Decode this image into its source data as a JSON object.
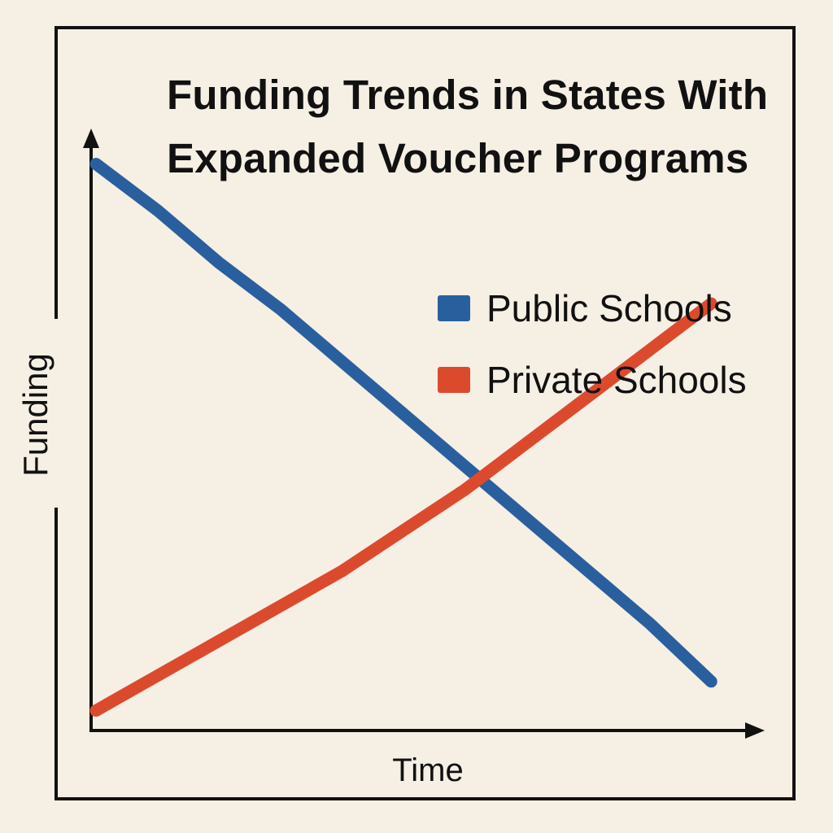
{
  "chart_data": {
    "type": "line",
    "title": "Funding Trends in States With Expanded Voucher Programs",
    "xlabel": "Time",
    "ylabel": "Funding",
    "x": [
      0,
      1,
      2,
      3,
      4,
      5,
      6,
      7,
      8,
      9,
      10
    ],
    "xlim": [
      0,
      10.5
    ],
    "ylim": [
      0,
      100
    ],
    "grid": false,
    "legend_position": "right",
    "series": [
      {
        "name": "Public Schools",
        "color": "#2a5f9e",
        "values": [
          97,
          89,
          80,
          72,
          63,
          54,
          45,
          36,
          27,
          18,
          8
        ]
      },
      {
        "name": "Private Schools",
        "color": "#dc4a2e",
        "values": [
          3,
          9,
          15,
          21,
          27,
          34,
          41,
          49,
          57,
          65,
          73
        ]
      }
    ]
  }
}
